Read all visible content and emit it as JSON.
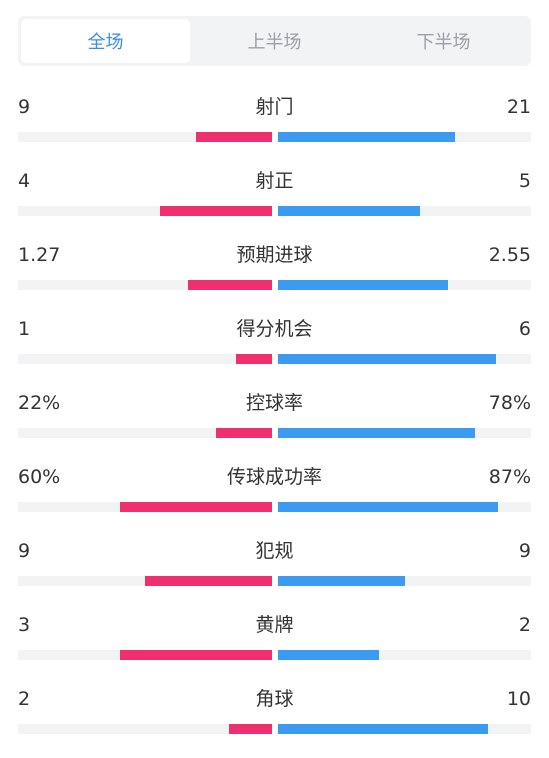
{
  "tabs": [
    {
      "label": "全场",
      "active": true
    },
    {
      "label": "上半场",
      "active": false
    },
    {
      "label": "下半场",
      "active": false
    }
  ],
  "colors": {
    "home_bar": "#f0306e",
    "away_bar": "#3a9bf0",
    "track": "#f2f3f5",
    "active_tab": "#3a8ee6"
  },
  "stats": [
    {
      "label": "射门",
      "left": "9",
      "right": "21",
      "left_fill": 0.3,
      "right_fill": 0.7
    },
    {
      "label": "射正",
      "left": "4",
      "right": "5",
      "left_fill": 0.44,
      "right_fill": 0.56
    },
    {
      "label": "预期进球",
      "left": "1.27",
      "right": "2.55",
      "left_fill": 0.33,
      "right_fill": 0.67
    },
    {
      "label": "得分机会",
      "left": "1",
      "right": "6",
      "left_fill": 0.14,
      "right_fill": 0.86
    },
    {
      "label": "控球率",
      "left": "22%",
      "right": "78%",
      "left_fill": 0.22,
      "right_fill": 0.78
    },
    {
      "label": "传球成功率",
      "left": "60%",
      "right": "87%",
      "left_fill": 0.6,
      "right_fill": 0.87
    },
    {
      "label": "犯规",
      "left": "9",
      "right": "9",
      "left_fill": 0.5,
      "right_fill": 0.5
    },
    {
      "label": "黄牌",
      "left": "3",
      "right": "2",
      "left_fill": 0.6,
      "right_fill": 0.4
    },
    {
      "label": "角球",
      "left": "2",
      "right": "10",
      "left_fill": 0.17,
      "right_fill": 0.83
    }
  ]
}
